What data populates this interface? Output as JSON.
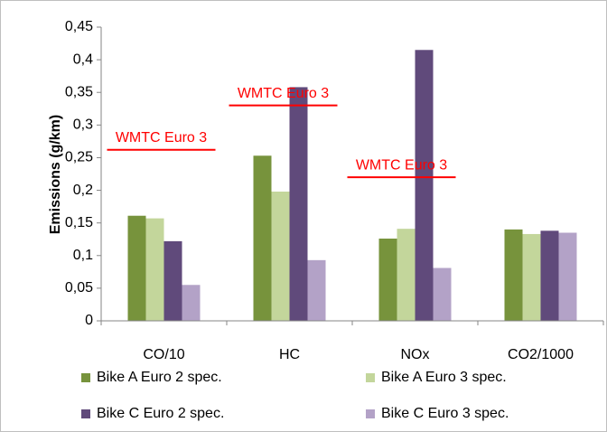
{
  "chart_data": {
    "type": "bar",
    "y_label": "Emissions (g/km)",
    "categories": [
      "CO/10",
      "HC",
      "NOx",
      "CO2/1000"
    ],
    "series": [
      {
        "name": "Bike A Euro 2 spec.",
        "color": "#77933c",
        "values": [
          0.161,
          0.253,
          0.126,
          0.14
        ]
      },
      {
        "name": "Bike A Euro 3 spec.",
        "color": "#c3d69b",
        "values": [
          0.157,
          0.198,
          0.141,
          0.133
        ]
      },
      {
        "name": "Bike C Euro 2 spec.",
        "color": "#604a7b",
        "values": [
          0.122,
          0.358,
          0.415,
          0.138
        ]
      },
      {
        "name": "Bike C Euro 3 spec.",
        "color": "#b3a2c7",
        "values": [
          0.055,
          0.093,
          0.081,
          0.135
        ]
      }
    ],
    "annotations": [
      {
        "text": "WMTC Euro 3",
        "category": 0,
        "value": 0.262,
        "color": "#ff0000"
      },
      {
        "text": "WMTC Euro 3",
        "category": 1,
        "value": 0.33,
        "color": "#ff0000"
      },
      {
        "text": "WMTC Euro 3",
        "category": 2,
        "value": 0.22,
        "color": "#ff0000"
      }
    ],
    "ylim": [
      0,
      0.45
    ],
    "yticks": [
      0,
      {
        "value": 0.05,
        "label": "0,05"
      },
      {
        "value": 0.1,
        "label": "0,1"
      },
      {
        "value": 0.15,
        "label": "0,15"
      },
      {
        "value": 0.2,
        "label": "0,2"
      },
      {
        "value": 0.25,
        "label": "0,25"
      },
      {
        "value": 0.3,
        "label": "0,3"
      },
      {
        "value": 0.35,
        "label": "0,35"
      },
      {
        "value": 0.4,
        "label": "0,4"
      },
      {
        "value": 0.45,
        "label": "0,45"
      }
    ],
    "grid": false,
    "legend": "bottom"
  }
}
